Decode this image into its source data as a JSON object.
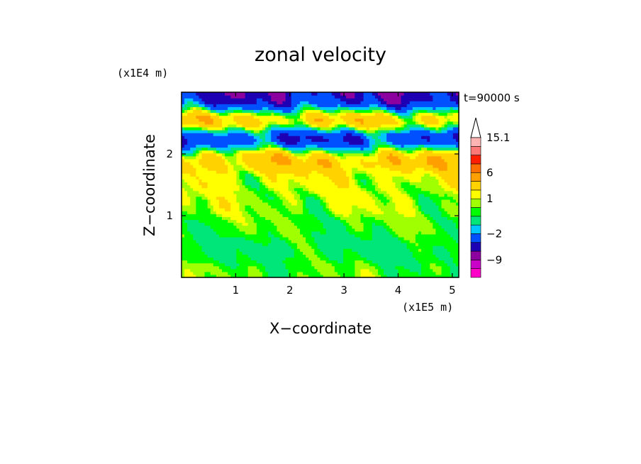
{
  "chart_data": {
    "type": "heatmap",
    "title": "zonal velocity",
    "xlabel": "X−coordinate",
    "ylabel": "Z−coordinate",
    "x_scale_label": "(x1E5 m)",
    "y_scale_label": "(x1E4 m)",
    "time_label": "t=90000 s",
    "xlim": [
      0.0,
      5.12
    ],
    "ylim": [
      0.0,
      3.0
    ],
    "x_ticks": [
      1,
      2,
      3,
      4,
      5
    ],
    "y_ticks": [
      1,
      2
    ],
    "grid": false,
    "colorbar": {
      "placement": "right",
      "labels": [
        "15.1",
        "6",
        "1",
        "−2",
        "−9"
      ],
      "label_values": [
        15.1,
        6,
        1,
        -2,
        -9
      ],
      "levels": [
        -13,
        -11,
        -9,
        -6,
        -4,
        -2,
        -1,
        0,
        0.5,
        1,
        2,
        4,
        6,
        8,
        10,
        12,
        15.1
      ],
      "colors": [
        "#ff00c8",
        "#c800c8",
        "#8c00a0",
        "#1e00b4",
        "#0050ff",
        "#00c8ff",
        "#00e678",
        "#00ff00",
        "#a0ff00",
        "#ffff00",
        "#ffd200",
        "#ffa000",
        "#ff6e00",
        "#ff1e00",
        "#ff7878",
        "#ffb4b4"
      ]
    },
    "bands": [
      {
        "z": 2.85,
        "value": -5.5,
        "amp": 5
      },
      {
        "z": 2.55,
        "value": 5,
        "amp": 5
      },
      {
        "z": 2.25,
        "value": -6,
        "amp": 5
      },
      {
        "z": 1.95,
        "value": 4,
        "amp": 5
      },
      {
        "z": 1.6,
        "value": 1.2,
        "amp": 3
      },
      {
        "z": 1.2,
        "value": 0.8,
        "amp": 2.5
      },
      {
        "z": 0.8,
        "value": 0.3,
        "amp": 1.5
      },
      {
        "z": 0.45,
        "value": -0.2,
        "amp": 1.5
      },
      {
        "z": 0.1,
        "value": 0.4,
        "amp": 1.5
      }
    ]
  }
}
